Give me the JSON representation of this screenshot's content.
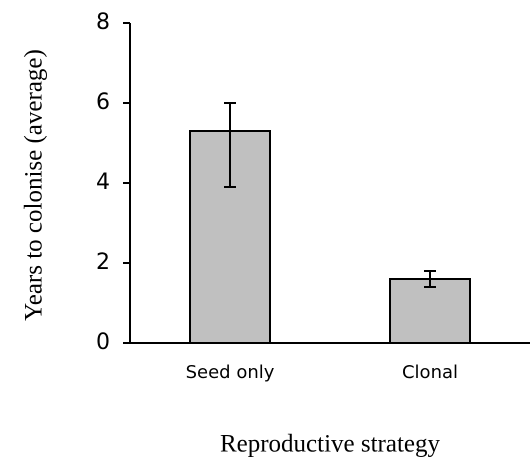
{
  "chart_data": {
    "type": "bar",
    "categories": [
      "Seed only",
      "Clonal"
    ],
    "values": [
      5.3,
      1.6
    ],
    "error_minus": [
      1.4,
      0.2
    ],
    "error_plus": [
      0.7,
      0.2
    ],
    "color": "#c0c0c0",
    "y_label": "Years to colonise (average)",
    "x_label": "Reproductive strategy",
    "ylim": [
      0,
      8
    ],
    "yticks": [
      0,
      2,
      4,
      6,
      8
    ],
    "grid": false
  }
}
